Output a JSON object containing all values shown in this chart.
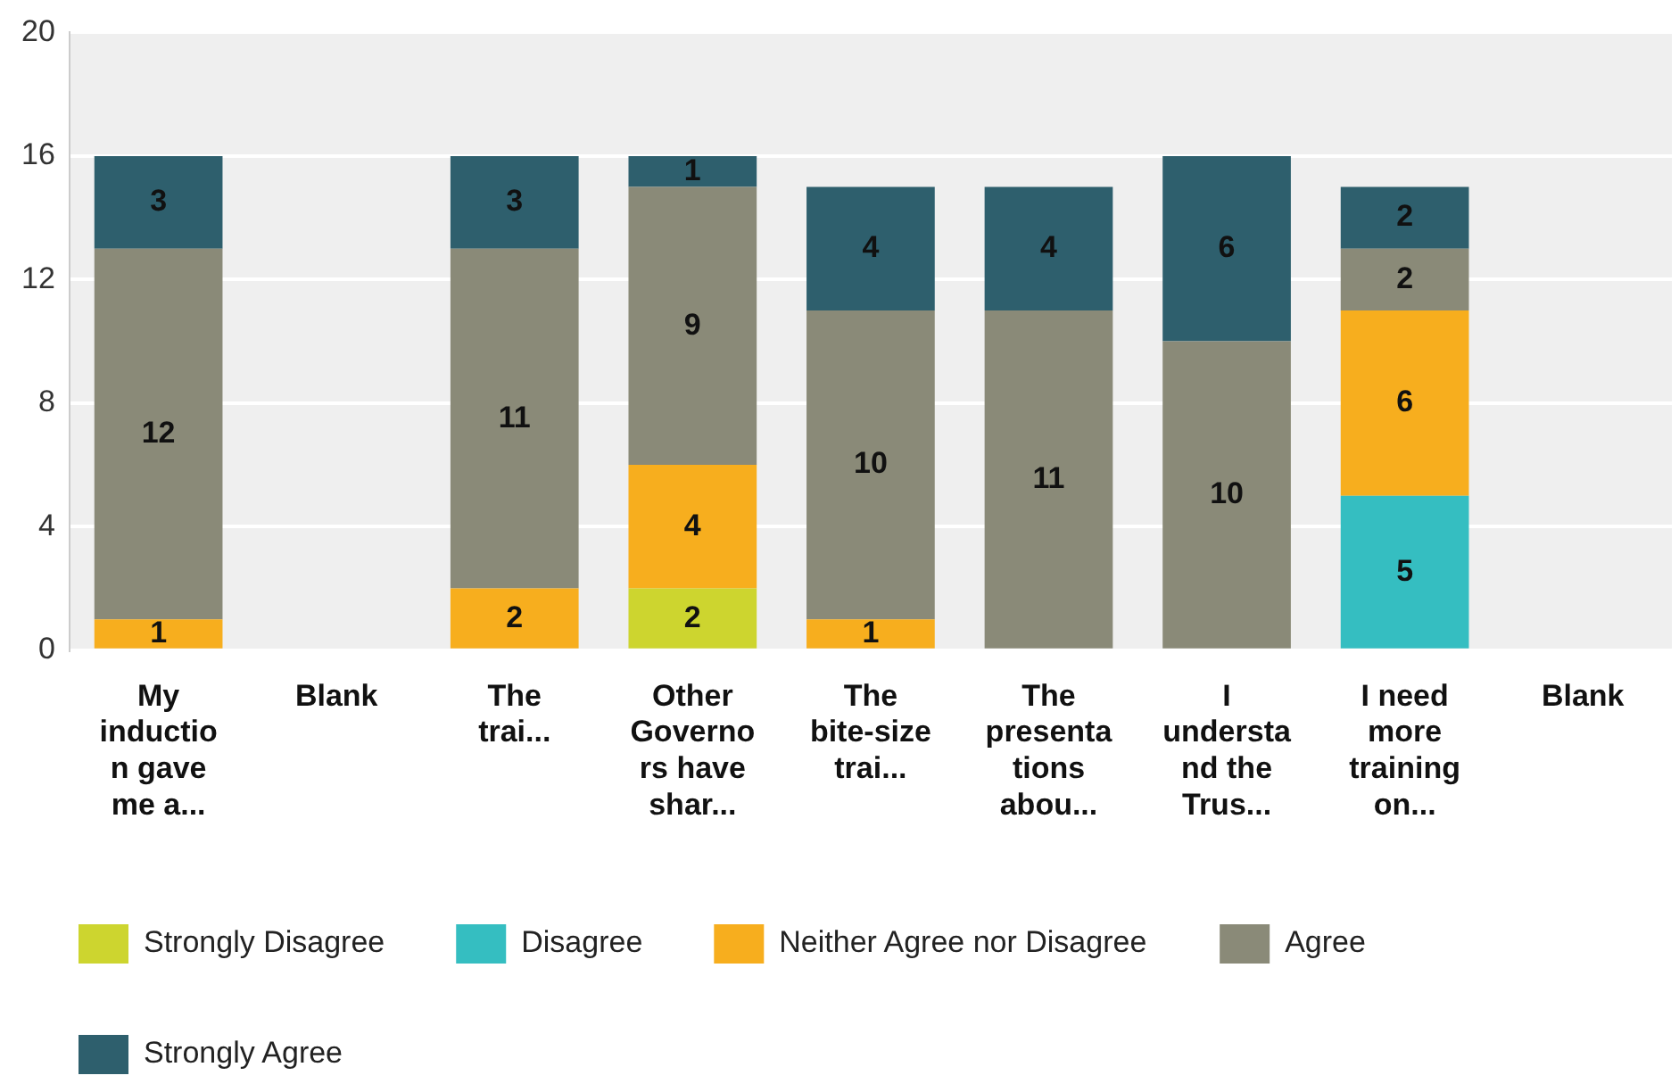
{
  "chart_data": {
    "type": "bar",
    "stacked": true,
    "categories": [
      "My induction gave me a...",
      "Blank",
      "The trai...",
      "Other Governors have shar...",
      "The bite-size trai...",
      "The presentations abou...",
      "I understand the Trus...",
      "I need more training on...",
      "Blank"
    ],
    "series": [
      {
        "name": "Strongly Disagree",
        "color": "#cdd52f",
        "values": [
          null,
          null,
          null,
          2,
          null,
          null,
          null,
          null,
          null
        ]
      },
      {
        "name": "Disagree",
        "color": "#35bec1",
        "values": [
          null,
          null,
          null,
          null,
          null,
          null,
          null,
          5,
          null
        ]
      },
      {
        "name": "Neither Agree nor Disagree",
        "color": "#f7ae1e",
        "values": [
          1,
          null,
          2,
          4,
          1,
          null,
          null,
          6,
          null
        ]
      },
      {
        "name": "Agree",
        "color": "#8a8a78",
        "values": [
          12,
          null,
          11,
          9,
          10,
          11,
          10,
          2,
          null
        ]
      },
      {
        "name": "Strongly Agree",
        "color": "#2e5f6d",
        "values": [
          3,
          null,
          3,
          1,
          4,
          4,
          6,
          2,
          null
        ]
      }
    ],
    "ylim": [
      0,
      20
    ],
    "yticks": [
      0,
      4,
      8,
      12,
      16,
      20
    ],
    "grid": "y",
    "legend": "bottom",
    "data_labels": true
  }
}
